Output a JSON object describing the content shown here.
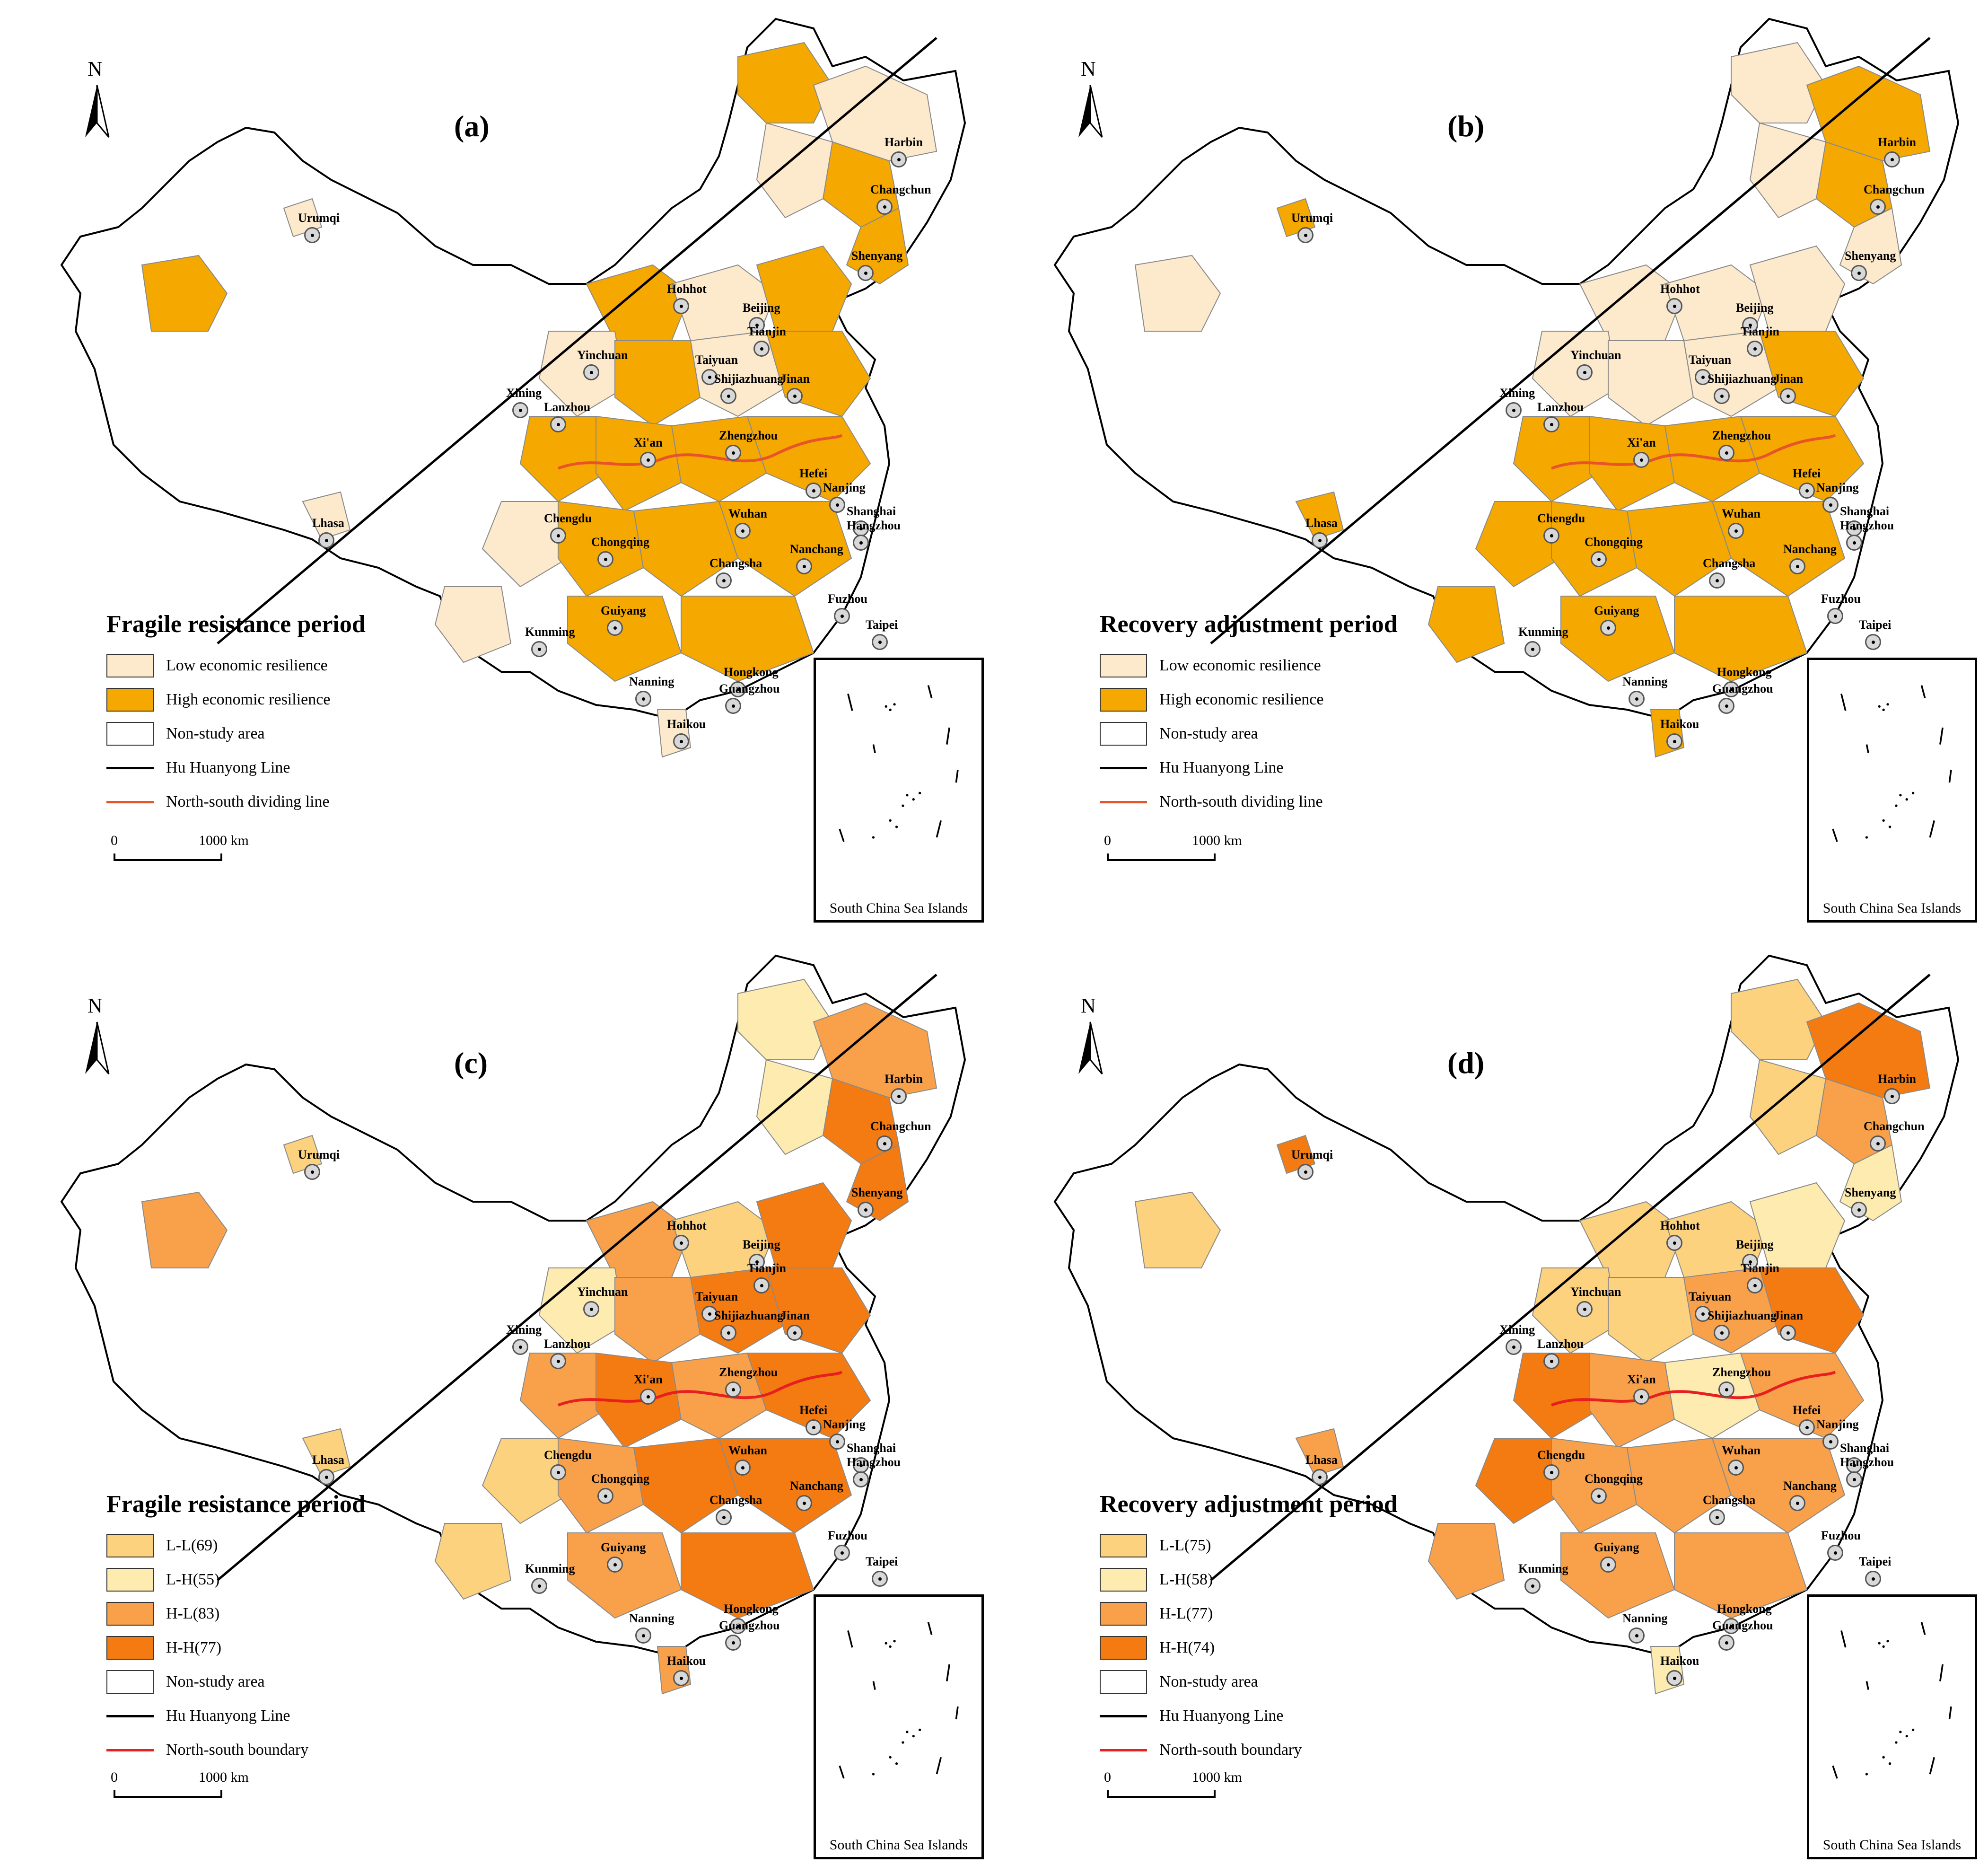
{
  "panels": [
    {
      "id": "a",
      "label": "(a)",
      "north": "N",
      "legend": {
        "title": "Fragile resistance period",
        "items": [
          {
            "label": "Low economic resilience",
            "color": "#fde9cc"
          },
          {
            "label": "High economic resilience",
            "color": "#f5a800"
          },
          {
            "label": "Non-study area",
            "color": "#ffffff"
          }
        ],
        "lines": [
          {
            "label": "Hu Huanyong Line",
            "color": "#000000"
          },
          {
            "label": "North-south dividing line",
            "color": "#e8542a"
          }
        ]
      },
      "scale": {
        "zero": "0",
        "distance": "1000 km"
      },
      "inset_title": "South China Sea Islands"
    },
    {
      "id": "b",
      "label": "(b)",
      "north": "N",
      "legend": {
        "title": "Recovery adjustment period",
        "items": [
          {
            "label": "Low economic resilience",
            "color": "#fde9cc"
          },
          {
            "label": "High economic resilience",
            "color": "#f5a800"
          },
          {
            "label": "Non-study area",
            "color": "#ffffff"
          }
        ],
        "lines": [
          {
            "label": "Hu Huanyong Line",
            "color": "#000000"
          },
          {
            "label": "North-south dividing line",
            "color": "#e8542a"
          }
        ]
      },
      "scale": {
        "zero": "0",
        "distance": "1000 km"
      },
      "inset_title": "South China Sea Islands"
    },
    {
      "id": "c",
      "label": "(c)",
      "north": "N",
      "legend": {
        "title": "Fragile resistance period",
        "items": [
          {
            "label": "L-L(69)",
            "color": "#fdd27f"
          },
          {
            "label": "L-H(55)",
            "color": "#feebb0"
          },
          {
            "label": "H-L(83)",
            "color": "#f9a14a"
          },
          {
            "label": "H-H(77)",
            "color": "#f37b12"
          },
          {
            "label": "Non-study area",
            "color": "#ffffff"
          }
        ],
        "lines": [
          {
            "label": "Hu Huanyong Line",
            "color": "#000000"
          },
          {
            "label": "North-south boundary",
            "color": "#e81f1f"
          }
        ]
      },
      "scale": {
        "zero": "0",
        "distance": "1000 km"
      },
      "inset_title": "South China Sea Islands"
    },
    {
      "id": "d",
      "label": "(d)",
      "north": "N",
      "legend": {
        "title": "Recovery adjustment period",
        "items": [
          {
            "label": "L-L(75)",
            "color": "#fdd27f"
          },
          {
            "label": "L-H(58)",
            "color": "#feebb0"
          },
          {
            "label": "H-L(77)",
            "color": "#f9a14a"
          },
          {
            "label": "H-H(74)",
            "color": "#f37b12"
          },
          {
            "label": "Non-study area",
            "color": "#ffffff"
          }
        ],
        "lines": [
          {
            "label": "Hu Huanyong Line",
            "color": "#000000"
          },
          {
            "label": "North-south boundary",
            "color": "#e81f1f"
          }
        ]
      },
      "scale": {
        "zero": "0",
        "distance": "1000 km"
      },
      "inset_title": "South China Sea Islands"
    }
  ],
  "cities": [
    "Harbin",
    "Changchun",
    "Shenyang",
    "Urumqi",
    "Hohhot",
    "Beijing",
    "Tianjin",
    "Yinchuan",
    "Taiyuan",
    "Shijiazhuang",
    "Jinan",
    "Xining",
    "Lanzhou",
    "Zhengzhou",
    "Xi'an",
    "Hefei",
    "Nanjing",
    "Shanghai",
    "Hangzhou",
    "Wuhan",
    "Lhasa",
    "Chengdu",
    "Chongqing",
    "Nanchang",
    "Changsha",
    "Fuzhou",
    "Taipei",
    "Guiyang",
    "Kunming",
    "Nanning",
    "Hongkong",
    "Guangzhou",
    "Haikou"
  ]
}
